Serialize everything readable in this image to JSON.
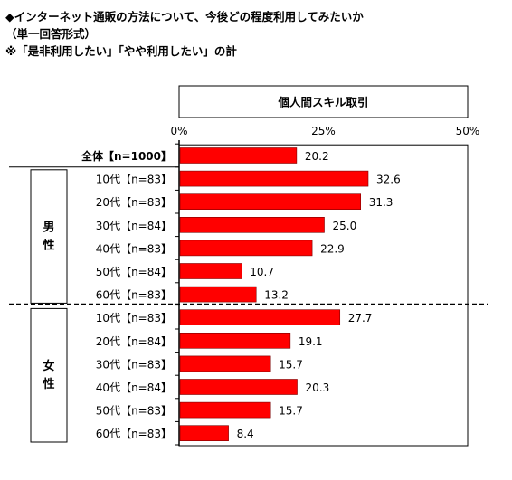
{
  "heading": {
    "line1": "◆インターネット通販の方法について、今後どの程度利用してみたいか",
    "line2": "（単一回答形式）",
    "line3": "※「是非利用したい」「やや利用したい」の計"
  },
  "colors": {
    "bar": "#ff0000",
    "bar_stroke": "#7a0000",
    "frame": "#000000"
  },
  "chart_data": {
    "type": "bar",
    "orientation": "horizontal",
    "series": [
      {
        "name": "個人間スキル取引",
        "values": [
          20.2,
          32.6,
          31.3,
          25.0,
          22.9,
          10.7,
          13.2,
          27.7,
          19.1,
          15.7,
          20.3,
          15.7,
          8.4
        ]
      }
    ],
    "categories": [
      "全体【n=1000】",
      "10代【n=83】",
      "20代【n=83】",
      "30代【n=84】",
      "40代【n=83】",
      "50代【n=84】",
      "60代【n=83】",
      "10代【n=83】",
      "20代【n=84】",
      "30代【n=83】",
      "40代【n=84】",
      "50代【n=83】",
      "60代【n=83】"
    ],
    "value_labels": [
      "20.2",
      "32.6",
      "31.3",
      "25.0",
      "22.9",
      "10.7",
      "13.2",
      "27.7",
      "19.1",
      "15.7",
      "20.3",
      "15.7",
      "8.4"
    ],
    "groups": [
      {
        "label": "男性",
        "start": 1,
        "end": 6
      },
      {
        "label": "女性",
        "start": 7,
        "end": 12
      }
    ],
    "xlim": [
      0,
      50
    ],
    "ticks": [
      0,
      25,
      50
    ],
    "tick_labels": [
      "0%",
      "25%",
      "50%"
    ],
    "grid": false
  }
}
